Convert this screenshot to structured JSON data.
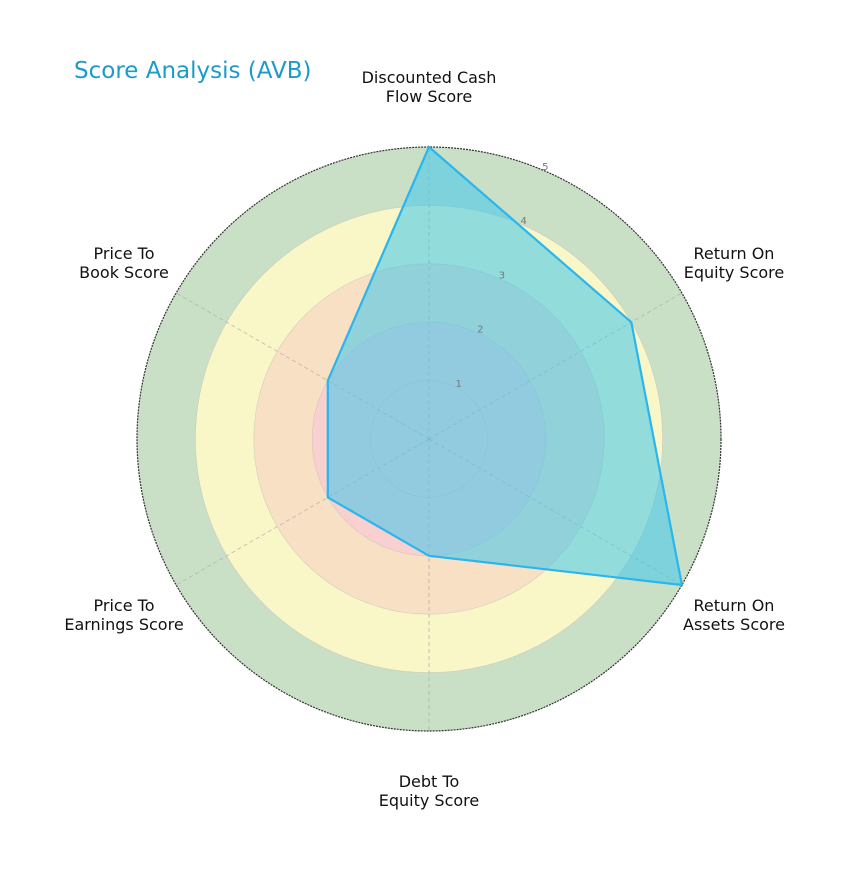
{
  "chart_data": {
    "type": "radar",
    "title": "Score Analysis (AVB)",
    "categories": [
      "Discounted Cash Flow Score",
      "Return On Equity Score",
      "Return On Assets Score",
      "Debt To Equity Score",
      "Price To Earnings Score",
      "Price To Book Score"
    ],
    "category_lines": [
      [
        "Discounted Cash",
        "Flow Score"
      ],
      [
        "Return On",
        "Equity Score"
      ],
      [
        "Return On",
        "Assets Score"
      ],
      [
        "Debt To",
        "Equity Score"
      ],
      [
        "Price To",
        "Earnings Score"
      ],
      [
        "Price To",
        "Book Score"
      ]
    ],
    "series": [
      {
        "name": "AVB",
        "values": [
          5,
          4,
          5,
          2,
          2,
          2
        ]
      }
    ],
    "radial_ticks": [
      "1",
      "2",
      "3",
      "4",
      "5"
    ],
    "rlim": [
      0,
      5
    ],
    "band_colors": [
      "#f8d0d0",
      "#f7e0c4",
      "#f9f6c7",
      "#c9e0c7"
    ],
    "fill_color": "#3ec6ec",
    "line_color": "#29b6ee"
  }
}
